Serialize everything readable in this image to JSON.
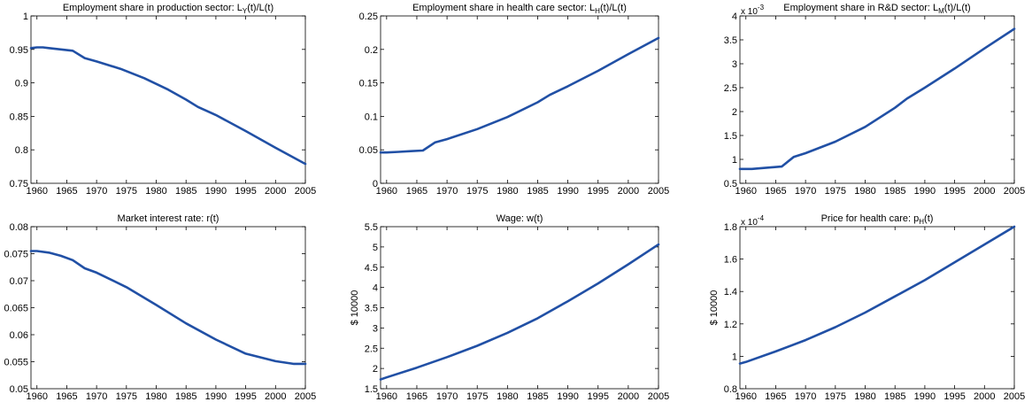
{
  "colors": {
    "line": "#2150a5",
    "axis": "#000000",
    "background": "#ffffff"
  },
  "chart_data": [
    {
      "type": "line",
      "title": "Employment share in production sector: ",
      "title_var": "L",
      "title_sub": "Y",
      "title_tail": "(t)/L(t)",
      "xlabel": "",
      "ylabel": "",
      "xlim": [
        1959,
        2005
      ],
      "ylim": [
        0.75,
        1.0
      ],
      "xticks": [
        1960,
        1965,
        1970,
        1975,
        1980,
        1985,
        1990,
        1995,
        2000,
        2005
      ],
      "xtick_labels": [
        "1960",
        "1965",
        "1970",
        "1975",
        "1980",
        "1985",
        "1990",
        "1995",
        "2000",
        "2005"
      ],
      "yticks": [
        0.75,
        0.8,
        0.85,
        0.9,
        0.95,
        1.0
      ],
      "ytick_labels": [
        "0.75",
        "0.8",
        "0.85",
        "0.9",
        "0.95",
        "1"
      ],
      "exponent_label": "",
      "grid": false,
      "series": [
        {
          "x": [
            1959,
            1960,
            1961,
            1962,
            1964,
            1966,
            1968,
            1970,
            1974,
            1978,
            1982,
            1985,
            1987,
            1990,
            1995,
            2000,
            2005
          ],
          "y": [
            0.952,
            0.953,
            0.953,
            0.952,
            0.95,
            0.948,
            0.937,
            0.932,
            0.921,
            0.907,
            0.89,
            0.875,
            0.864,
            0.852,
            0.828,
            0.803,
            0.779
          ]
        }
      ]
    },
    {
      "type": "line",
      "title": "Employment share in health care sector: ",
      "title_var": "L",
      "title_sub": "H",
      "title_tail": "(t)/L(t)",
      "xlabel": "",
      "ylabel": "",
      "xlim": [
        1959,
        2005
      ],
      "ylim": [
        0,
        0.25
      ],
      "xticks": [
        1960,
        1965,
        1970,
        1975,
        1980,
        1985,
        1990,
        1995,
        2000,
        2005
      ],
      "xtick_labels": [
        "1960",
        "1965",
        "1970",
        "1975",
        "1980",
        "1985",
        "1990",
        "1995",
        "2000",
        "2005"
      ],
      "yticks": [
        0,
        0.05,
        0.1,
        0.15,
        0.2,
        0.25
      ],
      "ytick_labels": [
        "0",
        "0.05",
        "0.1",
        "0.15",
        "0.2",
        "0.25"
      ],
      "exponent_label": "",
      "grid": false,
      "series": [
        {
          "x": [
            1959,
            1960,
            1962,
            1964,
            1966,
            1968,
            1970,
            1975,
            1980,
            1985,
            1987,
            1990,
            1995,
            2000,
            2005
          ],
          "y": [
            0.046,
            0.046,
            0.047,
            0.048,
            0.049,
            0.061,
            0.066,
            0.081,
            0.099,
            0.121,
            0.132,
            0.145,
            0.168,
            0.193,
            0.217
          ]
        }
      ]
    },
    {
      "type": "line",
      "title": "Employment share in R&D sector: ",
      "title_var": "L",
      "title_sub": "M",
      "title_tail": "(t)/L(t)",
      "xlabel": "",
      "ylabel": "",
      "xlim": [
        1959,
        2005
      ],
      "ylim": [
        0.5,
        4.0
      ],
      "xticks": [
        1960,
        1965,
        1970,
        1975,
        1980,
        1985,
        1990,
        1995,
        2000,
        2005
      ],
      "xtick_labels": [
        "1960",
        "1965",
        "1970",
        "1975",
        "1980",
        "1985",
        "1990",
        "1995",
        "2000",
        "2005"
      ],
      "yticks": [
        0.5,
        1.0,
        1.5,
        2.0,
        2.5,
        3.0,
        3.5,
        4.0
      ],
      "ytick_labels": [
        "0.5",
        "1",
        "1.5",
        "2",
        "2.5",
        "3",
        "3.5",
        "4"
      ],
      "exponent_label": "x 10",
      "exponent_power": "-3",
      "grid": false,
      "series": [
        {
          "x": [
            1959,
            1960,
            1961,
            1963,
            1966,
            1968,
            1970,
            1975,
            1980,
            1985,
            1987,
            1990,
            1995,
            2000,
            2005
          ],
          "y": [
            0.8,
            0.8,
            0.8,
            0.82,
            0.85,
            1.05,
            1.13,
            1.37,
            1.68,
            2.08,
            2.27,
            2.5,
            2.9,
            3.32,
            3.73
          ]
        }
      ]
    },
    {
      "type": "line",
      "title": "Market interest rate: r(t)",
      "title_var": "",
      "title_sub": "",
      "title_tail": "",
      "xlabel": "",
      "ylabel": "",
      "xlim": [
        1959,
        2005
      ],
      "ylim": [
        0.05,
        0.08
      ],
      "xticks": [
        1960,
        1965,
        1970,
        1975,
        1980,
        1985,
        1990,
        1995,
        2000,
        2005
      ],
      "xtick_labels": [
        "1960",
        "1965",
        "1970",
        "1975",
        "1980",
        "1985",
        "1990",
        "1995",
        "2000",
        "2005"
      ],
      "yticks": [
        0.05,
        0.055,
        0.06,
        0.065,
        0.07,
        0.075,
        0.08
      ],
      "ytick_labels": [
        "0.05",
        "0.055",
        "0.06",
        "0.065",
        "0.07",
        "0.075",
        "0.08"
      ],
      "exponent_label": "",
      "grid": false,
      "series": [
        {
          "x": [
            1959,
            1960,
            1962,
            1964,
            1966,
            1968,
            1970,
            1975,
            1980,
            1985,
            1990,
            1995,
            2000,
            2003,
            2005
          ],
          "y": [
            0.0755,
            0.0755,
            0.0752,
            0.0746,
            0.0738,
            0.0723,
            0.0715,
            0.0688,
            0.0655,
            0.0621,
            0.0591,
            0.0565,
            0.0551,
            0.0546,
            0.0546
          ]
        }
      ]
    },
    {
      "type": "line",
      "title": "Wage: w(t)",
      "title_var": "",
      "title_sub": "",
      "title_tail": "",
      "xlabel": "",
      "ylabel": "$ 10000",
      "xlim": [
        1959,
        2005
      ],
      "ylim": [
        1.5,
        5.5
      ],
      "xticks": [
        1960,
        1965,
        1970,
        1975,
        1980,
        1985,
        1990,
        1995,
        2000,
        2005
      ],
      "xtick_labels": [
        "1960",
        "1965",
        "1970",
        "1975",
        "1980",
        "1985",
        "1990",
        "1995",
        "2000",
        "2005"
      ],
      "yticks": [
        1.5,
        2.0,
        2.5,
        3.0,
        3.5,
        4.0,
        4.5,
        5.0,
        5.5
      ],
      "ytick_labels": [
        "1.5",
        "2",
        "2.5",
        "3",
        "3.5",
        "4",
        "4.5",
        "5",
        "5.5"
      ],
      "exponent_label": "",
      "grid": false,
      "series": [
        {
          "x": [
            1959,
            1960,
            1965,
            1970,
            1975,
            1980,
            1985,
            1990,
            1995,
            2000,
            2005
          ],
          "y": [
            1.73,
            1.78,
            2.02,
            2.28,
            2.56,
            2.88,
            3.24,
            3.66,
            4.1,
            4.57,
            5.06
          ]
        }
      ]
    },
    {
      "type": "line",
      "title": "Price for health care: ",
      "title_var": "p",
      "title_sub": "H",
      "title_tail": "(t)",
      "xlabel": "",
      "ylabel": "$ 10000",
      "xlim": [
        1959,
        2005
      ],
      "ylim": [
        0.8,
        1.8
      ],
      "xticks": [
        1960,
        1965,
        1970,
        1975,
        1980,
        1985,
        1990,
        1995,
        2000,
        2005
      ],
      "xtick_labels": [
        "1960",
        "1965",
        "1970",
        "1975",
        "1980",
        "1985",
        "1990",
        "1995",
        "2000",
        "2005"
      ],
      "yticks": [
        0.8,
        1.0,
        1.2,
        1.4,
        1.6,
        1.8
      ],
      "ytick_labels": [
        "0.8",
        "1",
        "1.2",
        "1.4",
        "1.6",
        "1.8"
      ],
      "exponent_label": "x 10",
      "exponent_power": "-4",
      "grid": false,
      "series": [
        {
          "x": [
            1959,
            1960,
            1965,
            1970,
            1975,
            1980,
            1985,
            1990,
            1995,
            2000,
            2005
          ],
          "y": [
            0.955,
            0.965,
            1.03,
            1.1,
            1.18,
            1.27,
            1.37,
            1.47,
            1.58,
            1.69,
            1.8
          ]
        }
      ]
    }
  ]
}
